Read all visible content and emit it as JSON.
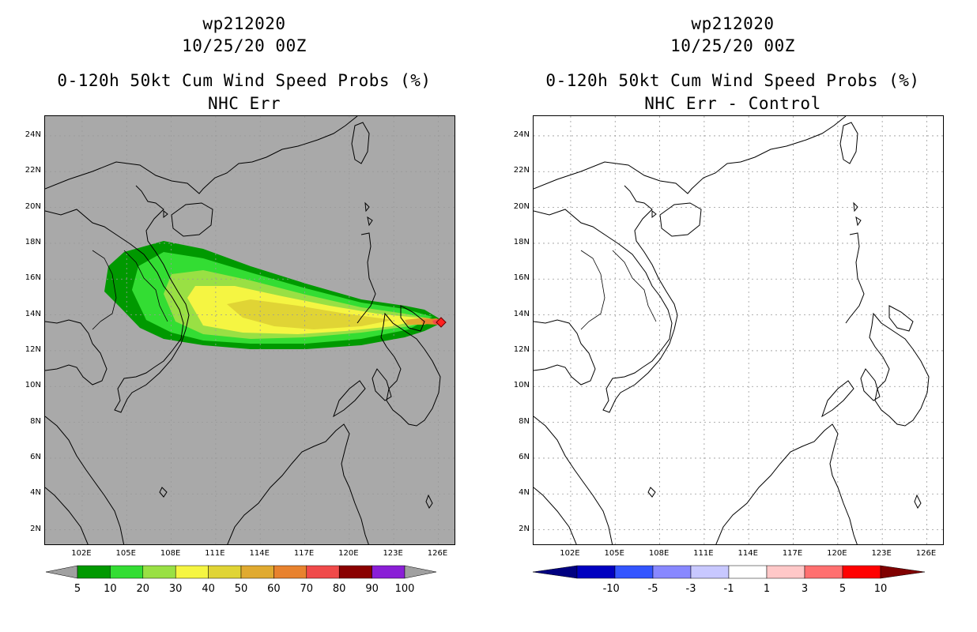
{
  "left_panel": {
    "title_line1": "wp212020",
    "title_line2": "10/25/20 00Z",
    "title_line3": "0-120h 50kt Cum Wind Speed Probs (%)",
    "title_line4": "NHC Err",
    "background_color": "#a9a9a9",
    "colorbar": {
      "labels": [
        "5",
        "10",
        "20",
        "30",
        "40",
        "50",
        "60",
        "70",
        "80",
        "90",
        "100"
      ],
      "colors": [
        "#009900",
        "#33dd33",
        "#99e044",
        "#f5f542",
        "#e0d435",
        "#e0aa30",
        "#e8822e",
        "#f04a4a",
        "#8a0000",
        "#8a1fd6"
      ],
      "end_color": "#a0a0a0"
    }
  },
  "right_panel": {
    "title_line1": "wp212020",
    "title_line2": "10/25/20 00Z",
    "title_line3": "0-120h 50kt Cum Wind Speed Probs (%)",
    "title_line4": "NHC Err - Control",
    "background_color": "#ffffff",
    "colorbar": {
      "labels": [
        "-10",
        "-5",
        "-3",
        "-1",
        "1",
        "3",
        "5",
        "10"
      ],
      "colors": [
        "#0000c0",
        "#3355ff",
        "#8888ff",
        "#c8c8ff",
        "#ffffff",
        "#ffc8c8",
        "#ff7070",
        "#ff0000"
      ],
      "end_low": "#000080",
      "end_high": "#800000"
    }
  },
  "axes": {
    "lat_labels": [
      "2N",
      "4N",
      "6N",
      "8N",
      "10N",
      "12N",
      "14N",
      "16N",
      "18N",
      "20N",
      "22N",
      "24N"
    ],
    "lon_labels": [
      "102E",
      "105E",
      "108E",
      "111E",
      "114E",
      "117E",
      "120E",
      "123E",
      "126E"
    ],
    "lat_values": [
      2,
      4,
      6,
      8,
      10,
      12,
      14,
      16,
      18,
      20,
      22,
      24
    ],
    "lon_values": [
      102,
      105,
      108,
      111,
      114,
      117,
      120,
      123,
      126
    ]
  }
}
